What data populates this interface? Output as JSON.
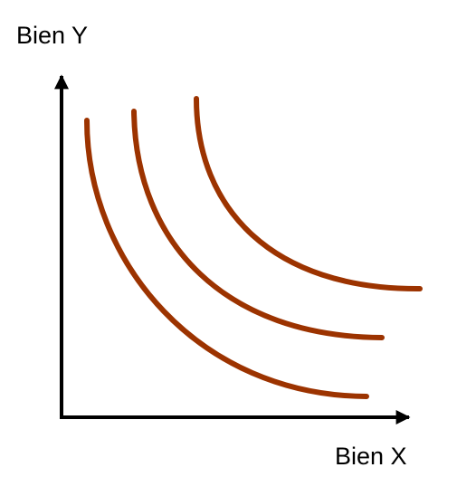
{
  "y_axis": {
    "label": "Bien Y"
  },
  "x_axis": {
    "label": "Bien X"
  },
  "colors": {
    "axes": "#000000",
    "curves": "#9c3300"
  },
  "curves": [
    {
      "name": "indifference-curve-1"
    },
    {
      "name": "indifference-curve-2"
    },
    {
      "name": "indifference-curve-3"
    }
  ]
}
